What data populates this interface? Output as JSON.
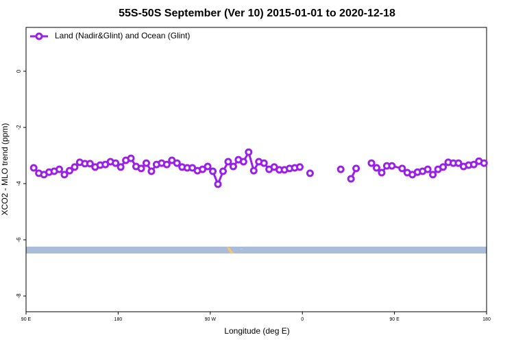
{
  "chart_data": {
    "type": "line",
    "title": "55S-50S September (Ver 10)   2015-01-01 to 2020-12-18",
    "x_label": "Longitude (deg E)",
    "y_label": "XCO2 - MLO trend (ppm)",
    "xlim": [
      90,
      540
    ],
    "xticks": [
      {
        "value": 90,
        "label": "90 E"
      },
      {
        "value": 180,
        "label": "180"
      },
      {
        "value": 270,
        "label": "90 W"
      },
      {
        "value": 360,
        "label": "0"
      },
      {
        "value": 450,
        "label": "90 E"
      },
      {
        "value": 540,
        "label": "180"
      }
    ],
    "ylim": [
      -8.56,
      1.56
    ],
    "yticks": [
      0,
      -2,
      -4,
      -6,
      -8
    ],
    "legend": "top-left",
    "x": [
      97.5,
      102.5,
      107.5,
      112.5,
      117.5,
      122.5,
      127.5,
      132.5,
      137.5,
      142.5,
      147.5,
      152.5,
      157.5,
      162.5,
      167.5,
      172.5,
      177.5,
      182.5,
      187.5,
      192.5,
      197.5,
      202.5,
      207.5,
      212.5,
      217.5,
      222.5,
      227.5,
      232.5,
      237.5,
      242.5,
      247.5,
      252.5,
      257.5,
      262.5,
      267.5,
      272.5,
      277.5,
      282.5,
      287.5,
      292.5,
      297.5,
      302.5,
      307.5,
      312.5,
      317.5,
      322.5,
      327.5,
      332.5,
      337.5,
      342.5,
      347.5,
      352.5,
      357.5,
      362.5,
      367.5,
      372.5,
      397.5,
      402.5,
      407.5,
      412.5,
      417.5,
      427.5,
      432.5,
      437.5,
      442.5,
      447.5,
      457.5,
      462.5,
      467.5,
      472.5,
      477.5,
      482.5,
      487.5,
      492.5,
      497.5,
      502.5,
      507.5,
      512.5,
      517.5,
      522.5,
      527.5,
      532.5,
      537.5
    ],
    "series": [
      {
        "name": "Land (Nadir&Glint) and Ocean (Glint)",
        "color": "#9b1fe8",
        "values": [
          -3.44,
          -3.63,
          -3.68,
          -3.59,
          -3.56,
          -3.49,
          -3.68,
          -3.54,
          -3.41,
          -3.24,
          -3.29,
          -3.29,
          -3.41,
          -3.34,
          -3.32,
          -3.22,
          -3.27,
          -3.41,
          -3.17,
          -3.1,
          -3.39,
          -3.46,
          -3.27,
          -3.56,
          -3.32,
          -3.27,
          -3.32,
          -3.17,
          -3.27,
          -3.41,
          -3.44,
          -3.44,
          -3.54,
          -3.49,
          -3.39,
          -3.56,
          -4.02,
          -3.56,
          -3.22,
          -3.39,
          -3.15,
          -3.22,
          -2.88,
          -3.54,
          -3.22,
          -3.27,
          -3.49,
          -3.41,
          -3.51,
          -3.51,
          -3.46,
          -3.44,
          -3.41,
          null,
          -3.63,
          null,
          -3.49,
          null,
          -3.83,
          -3.46,
          null,
          -3.27,
          -3.44,
          -3.61,
          -3.37,
          -3.37,
          -3.46,
          -3.61,
          -3.68,
          -3.59,
          -3.56,
          -3.49,
          -3.68,
          -3.49,
          -3.41,
          -3.24,
          -3.27,
          -3.27,
          -3.39,
          -3.34,
          -3.32,
          -3.2,
          -3.27
        ]
      }
    ]
  }
}
